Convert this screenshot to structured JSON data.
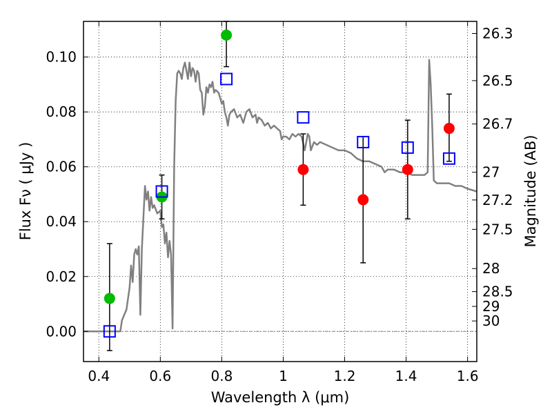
{
  "chart_data": {
    "type": "scatter",
    "xlabel": "Wavelength  λ (μm)",
    "ylabel": "Flux  Fν  ( μJy )",
    "ylabel_right": "Magnitude (AB)",
    "xlim": [
      0.35,
      1.63
    ],
    "ylim": [
      -0.011,
      0.113
    ],
    "grid": true,
    "x_ticks": [
      0.4,
      0.6,
      0.8,
      1.0,
      1.2,
      1.4,
      1.6
    ],
    "x_tick_labels": [
      "0.4",
      "0.6",
      "0.8",
      "1",
      "1.2",
      "1.4",
      "1.6"
    ],
    "y_ticks": [
      0.0,
      0.02,
      0.04,
      0.06,
      0.08,
      0.1
    ],
    "y_tick_labels": [
      "0.00",
      "0.02",
      "0.04",
      "0.06",
      "0.08",
      "0.10"
    ],
    "right_ticks": [
      {
        "flux": 0.1086,
        "label": "26.3"
      },
      {
        "flux": 0.0914,
        "label": "26.5"
      },
      {
        "flux": 0.0756,
        "label": "26.7"
      },
      {
        "flux": 0.058,
        "label": "27"
      },
      {
        "flux": 0.0479,
        "label": "27.2"
      },
      {
        "flux": 0.0372,
        "label": "27.5"
      },
      {
        "flux": 0.0229,
        "label": "28"
      },
      {
        "flux": 0.0145,
        "label": "28.5"
      },
      {
        "flux": 0.0091,
        "label": "29"
      },
      {
        "flux": 0.0038,
        "label": "30"
      }
    ],
    "series": [
      {
        "kind": "line",
        "color": "#808080",
        "points": [
          [
            0.35,
            0.0
          ],
          [
            0.47,
            0.0
          ],
          [
            0.475,
            0.004
          ],
          [
            0.49,
            0.008
          ],
          [
            0.5,
            0.016
          ],
          [
            0.505,
            0.024
          ],
          [
            0.51,
            0.018
          ],
          [
            0.515,
            0.028
          ],
          [
            0.52,
            0.03
          ],
          [
            0.525,
            0.028
          ],
          [
            0.53,
            0.031
          ],
          [
            0.535,
            0.006
          ],
          [
            0.54,
            0.03
          ],
          [
            0.55,
            0.053
          ],
          [
            0.555,
            0.048
          ],
          [
            0.56,
            0.051
          ],
          [
            0.565,
            0.044
          ],
          [
            0.57,
            0.049
          ],
          [
            0.575,
            0.045
          ],
          [
            0.58,
            0.046
          ],
          [
            0.59,
            0.043
          ],
          [
            0.6,
            0.044
          ],
          [
            0.605,
            0.038
          ],
          [
            0.61,
            0.039
          ],
          [
            0.615,
            0.032
          ],
          [
            0.62,
            0.036
          ],
          [
            0.625,
            0.027
          ],
          [
            0.63,
            0.033
          ],
          [
            0.635,
            0.028
          ],
          [
            0.64,
            0.001
          ],
          [
            0.645,
            0.06
          ],
          [
            0.65,
            0.084
          ],
          [
            0.655,
            0.094
          ],
          [
            0.66,
            0.095
          ],
          [
            0.665,
            0.094
          ],
          [
            0.67,
            0.092
          ],
          [
            0.675,
            0.096
          ],
          [
            0.68,
            0.098
          ],
          [
            0.685,
            0.095
          ],
          [
            0.69,
            0.092
          ],
          [
            0.695,
            0.098
          ],
          [
            0.7,
            0.093
          ],
          [
            0.705,
            0.096
          ],
          [
            0.71,
            0.095
          ],
          [
            0.715,
            0.091
          ],
          [
            0.72,
            0.095
          ],
          [
            0.725,
            0.094
          ],
          [
            0.73,
            0.088
          ],
          [
            0.735,
            0.087
          ],
          [
            0.74,
            0.079
          ],
          [
            0.745,
            0.082
          ],
          [
            0.75,
            0.089
          ],
          [
            0.755,
            0.087
          ],
          [
            0.76,
            0.09
          ],
          [
            0.765,
            0.089
          ],
          [
            0.77,
            0.091
          ],
          [
            0.775,
            0.087
          ],
          [
            0.78,
            0.088
          ],
          [
            0.79,
            0.087
          ],
          [
            0.8,
            0.083
          ],
          [
            0.805,
            0.084
          ],
          [
            0.81,
            0.08
          ],
          [
            0.815,
            0.078
          ],
          [
            0.82,
            0.075
          ],
          [
            0.825,
            0.079
          ],
          [
            0.83,
            0.08
          ],
          [
            0.84,
            0.081
          ],
          [
            0.85,
            0.078
          ],
          [
            0.86,
            0.079
          ],
          [
            0.87,
            0.076
          ],
          [
            0.88,
            0.08
          ],
          [
            0.89,
            0.081
          ],
          [
            0.9,
            0.078
          ],
          [
            0.91,
            0.079
          ],
          [
            0.915,
            0.076
          ],
          [
            0.92,
            0.078
          ],
          [
            0.93,
            0.077
          ],
          [
            0.94,
            0.075
          ],
          [
            0.95,
            0.076
          ],
          [
            0.96,
            0.074
          ],
          [
            0.97,
            0.075
          ],
          [
            0.98,
            0.074
          ],
          [
            0.99,
            0.073
          ],
          [
            0.995,
            0.07
          ],
          [
            1.0,
            0.071
          ],
          [
            1.01,
            0.071
          ],
          [
            1.02,
            0.07
          ],
          [
            1.03,
            0.072
          ],
          [
            1.04,
            0.071
          ],
          [
            1.05,
            0.072
          ],
          [
            1.06,
            0.071
          ],
          [
            1.07,
            0.066
          ],
          [
            1.08,
            0.072
          ],
          [
            1.085,
            0.071
          ],
          [
            1.09,
            0.066
          ],
          [
            1.1,
            0.069
          ],
          [
            1.11,
            0.068
          ],
          [
            1.12,
            0.069
          ],
          [
            1.14,
            0.068
          ],
          [
            1.16,
            0.067
          ],
          [
            1.18,
            0.066
          ],
          [
            1.2,
            0.066
          ],
          [
            1.22,
            0.065
          ],
          [
            1.24,
            0.063
          ],
          [
            1.26,
            0.062
          ],
          [
            1.28,
            0.062
          ],
          [
            1.3,
            0.061
          ],
          [
            1.32,
            0.06
          ],
          [
            1.33,
            0.058
          ],
          [
            1.34,
            0.059
          ],
          [
            1.36,
            0.059
          ],
          [
            1.38,
            0.058
          ],
          [
            1.4,
            0.058
          ],
          [
            1.42,
            0.057
          ],
          [
            1.44,
            0.057
          ],
          [
            1.46,
            0.057
          ],
          [
            1.47,
            0.058
          ],
          [
            1.475,
            0.099
          ],
          [
            1.48,
            0.09
          ],
          [
            1.485,
            0.075
          ],
          [
            1.49,
            0.055
          ],
          [
            1.5,
            0.054
          ],
          [
            1.52,
            0.054
          ],
          [
            1.54,
            0.054
          ],
          [
            1.56,
            0.053
          ],
          [
            1.58,
            0.053
          ],
          [
            1.6,
            0.052
          ],
          [
            1.63,
            0.051
          ]
        ]
      },
      {
        "kind": "errorbars",
        "color": "#000000",
        "bars": [
          {
            "x": 0.435,
            "low": -0.007,
            "high": 0.032
          },
          {
            "x": 0.605,
            "low": 0.041,
            "high": 0.057
          },
          {
            "x": 0.815,
            "low": 0.0965,
            "high": 0.113
          },
          {
            "x": 1.065,
            "low": 0.046,
            "high": 0.072
          },
          {
            "x": 1.26,
            "low": 0.025,
            "high": 0.071
          },
          {
            "x": 1.405,
            "low": 0.041,
            "high": 0.077
          },
          {
            "x": 1.54,
            "low": 0.062,
            "high": 0.0865
          }
        ]
      },
      {
        "kind": "markers",
        "marker": "circle",
        "color": "#00bb00",
        "points": [
          [
            0.435,
            0.012
          ],
          [
            0.605,
            0.049
          ],
          [
            0.815,
            0.108
          ]
        ]
      },
      {
        "kind": "markers",
        "marker": "circle",
        "color": "#ff0000",
        "points": [
          [
            1.065,
            0.059
          ],
          [
            1.26,
            0.048
          ],
          [
            1.405,
            0.059
          ],
          [
            1.54,
            0.074
          ]
        ]
      },
      {
        "kind": "markers",
        "marker": "square",
        "color": "#0000ff",
        "points": [
          [
            0.435,
            0.0
          ],
          [
            0.605,
            0.051
          ],
          [
            0.815,
            0.092
          ],
          [
            1.065,
            0.078
          ],
          [
            1.26,
            0.069
          ],
          [
            1.405,
            0.067
          ],
          [
            1.54,
            0.063
          ]
        ]
      }
    ],
    "zero_line": {
      "y": 0.0,
      "color": "#808080"
    }
  }
}
